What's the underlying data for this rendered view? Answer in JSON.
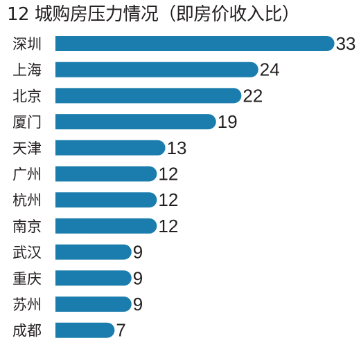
{
  "chart_data": {
    "type": "bar",
    "orientation": "horizontal",
    "title": "12 城购房压力情况（即房价收入比）",
    "categories": [
      "深圳",
      "上海",
      "北京",
      "厦门",
      "天津",
      "广州",
      "杭州",
      "南京",
      "武汉",
      "重庆",
      "苏州",
      "成都"
    ],
    "values": [
      33,
      24,
      22,
      19,
      13,
      12,
      12,
      12,
      9,
      9,
      9,
      7
    ],
    "xlabel": "",
    "ylabel": "",
    "grid": false,
    "legend": "none",
    "data_labels": true,
    "bar_color": "#1b7dad"
  }
}
